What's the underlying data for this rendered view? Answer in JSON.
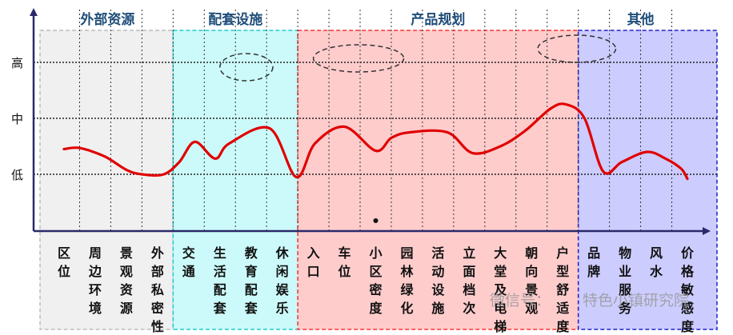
{
  "chart_data": {
    "type": "line",
    "y_levels": [
      "低",
      "中",
      "高"
    ],
    "groups": [
      {
        "label": "外部资源",
        "start": 0,
        "end": 3,
        "fill": "#f0f0f0",
        "border": "#bdbdbd",
        "label_color": "#1f4e79"
      },
      {
        "label": "配套设施",
        "start": 4,
        "end": 7,
        "fill": "#ccfafa",
        "border": "#22cccc",
        "label_color": "#1f4e79"
      },
      {
        "label": "产品规划",
        "start": 8,
        "end": 16,
        "fill": "#ffcccc",
        "border": "#ff3333",
        "label_color": "#1f4e79"
      },
      {
        "label": "其他",
        "start": 17,
        "end": 20,
        "fill": "#ccccff",
        "border": "#2222cc",
        "label_color": "#1f4e79"
      }
    ],
    "categories": [
      "区位",
      "周边环境",
      "景观资源",
      "外部私密性",
      "交通",
      "生活配套",
      "教育配套",
      "休闲娱乐",
      "入口",
      "车位",
      "小区密度",
      "园林绿化",
      "活动设施",
      "立面档次",
      "大堂及电梯",
      "朝向景观",
      "户型舒适度",
      "品牌",
      "物业服务",
      "风水",
      "价格敏感度"
    ],
    "curve": {
      "x": [
        0,
        0.5,
        1.3,
        2.0,
        2.5,
        3.2,
        3.7,
        4.2,
        4.85,
        5.3,
        6.6,
        7.45,
        8.05,
        9.0,
        10.0,
        10.5,
        11.1,
        12.3,
        13.1,
        14.0,
        14.8,
        15.6,
        16.1,
        16.7,
        17.3,
        17.9,
        18.7,
        19.3,
        19.8,
        20.0
      ],
      "y": [
        1.45,
        1.47,
        1.32,
        1.08,
        1.0,
        1.0,
        1.22,
        1.58,
        1.28,
        1.55,
        1.82,
        0.95,
        1.55,
        1.85,
        1.42,
        1.65,
        1.75,
        1.75,
        1.38,
        1.5,
        1.78,
        2.17,
        2.25,
        2.0,
        1.05,
        1.22,
        1.4,
        1.28,
        1.1,
        0.92
      ],
      "color": "#e00000"
    },
    "highlights": [
      {
        "from": 5.0,
        "to": 6.7
      },
      {
        "from": 8.0,
        "to": 10.9
      },
      {
        "from": 15.2,
        "to": 17.7
      }
    ],
    "marker": {
      "x": 10.0,
      "y": 0.3
    }
  },
  "watermark": {
    "brand": "微信号：",
    "name": "特色小镇研究院"
  }
}
